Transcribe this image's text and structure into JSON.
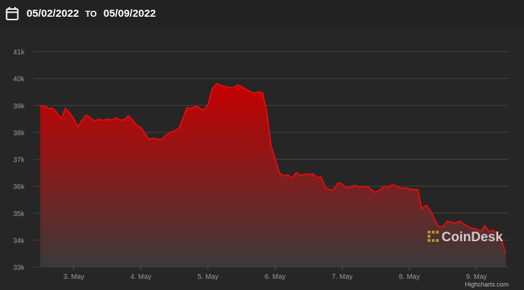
{
  "header": {
    "from": "05/02/2022",
    "to_label": "TO",
    "to": "05/09/2022"
  },
  "chart_data": {
    "type": "area",
    "x": [
      2.5,
      2.5625,
      2.625,
      2.6875,
      2.75,
      2.8125,
      2.875,
      2.9375,
      3,
      3.0625,
      3.125,
      3.1875,
      3.25,
      3.3125,
      3.375,
      3.4375,
      3.5,
      3.5625,
      3.625,
      3.6875,
      3.75,
      3.8125,
      3.875,
      3.9375,
      4,
      4.0625,
      4.125,
      4.1875,
      4.25,
      4.3125,
      4.375,
      4.4375,
      4.5,
      4.5625,
      4.625,
      4.6875,
      4.75,
      4.8125,
      4.875,
      4.9375,
      5,
      5.0625,
      5.125,
      5.1875,
      5.25,
      5.3125,
      5.375,
      5.4375,
      5.5,
      5.5625,
      5.625,
      5.6875,
      5.75,
      5.8125,
      5.875,
      5.9375,
      6,
      6.0625,
      6.125,
      6.1875,
      6.25,
      6.3125,
      6.375,
      6.4375,
      6.5,
      6.5625,
      6.625,
      6.6875,
      6.75,
      6.8125,
      6.875,
      6.9375,
      7,
      7.0625,
      7.125,
      7.1875,
      7.25,
      7.3125,
      7.375,
      7.4375,
      7.5,
      7.5625,
      7.625,
      7.6875,
      7.75,
      7.8125,
      7.875,
      7.9375,
      8,
      8.0625,
      8.125,
      8.1875,
      8.25,
      8.3125,
      8.375,
      8.4375,
      8.5,
      8.5625,
      8.625,
      8.6875,
      8.75,
      8.8125,
      8.875,
      8.9375,
      9,
      9.0625,
      9.125,
      9.1875,
      9.25,
      9.3125,
      9.375,
      9.4375
    ],
    "series": [
      {
        "color": "#e00d0d",
        "values": [
          38980,
          38980,
          38880,
          38900,
          38720,
          38510,
          38900,
          38720,
          38510,
          38200,
          38460,
          38640,
          38540,
          38410,
          38490,
          38440,
          38490,
          38460,
          38540,
          38460,
          38460,
          38620,
          38460,
          38260,
          38180,
          37950,
          37740,
          37790,
          37740,
          37740,
          37900,
          38000,
          38050,
          38130,
          38510,
          38930,
          38880,
          38980,
          38900,
          38820,
          39030,
          39600,
          39810,
          39750,
          39700,
          39670,
          39650,
          39760,
          39710,
          39600,
          39520,
          39450,
          39500,
          39470,
          38770,
          37500,
          37020,
          36500,
          36380,
          36420,
          36300,
          36500,
          36400,
          36440,
          36440,
          36460,
          36320,
          36340,
          35930,
          35870,
          35870,
          36130,
          36080,
          35930,
          35980,
          36030,
          35980,
          35980,
          35980,
          35870,
          35770,
          35870,
          35980,
          35980,
          36050,
          36000,
          35930,
          35930,
          35900,
          35870,
          35870,
          35150,
          35300,
          35100,
          34750,
          34500,
          34500,
          34700,
          34650,
          34630,
          34700,
          34600,
          34500,
          34430,
          34420,
          34300,
          34530,
          34320,
          34370,
          34220,
          34010,
          33490
        ]
      }
    ],
    "xlim": [
      2.4,
      9.48
    ],
    "xticks": [
      {
        "value": 3,
        "label": "3. May"
      },
      {
        "value": 4,
        "label": "4. May"
      },
      {
        "value": 5,
        "label": "5. May"
      },
      {
        "value": 6,
        "label": "6. May"
      },
      {
        "value": 7,
        "label": "7. May"
      },
      {
        "value": 8,
        "label": "8. May"
      },
      {
        "value": 9,
        "label": "9. May"
      }
    ],
    "ylim": [
      33000,
      41000
    ],
    "yticks": [
      {
        "value": 33000,
        "label": "33k"
      },
      {
        "value": 34000,
        "label": "34k"
      },
      {
        "value": 35000,
        "label": "35k"
      },
      {
        "value": 36000,
        "label": "36k"
      },
      {
        "value": 37000,
        "label": "37k"
      },
      {
        "value": 38000,
        "label": "38k"
      },
      {
        "value": 39000,
        "label": "39k"
      },
      {
        "value": 40000,
        "label": "40k"
      },
      {
        "value": 41000,
        "label": "41k"
      }
    ],
    "grid": true,
    "watermark": "CoinDesk",
    "credits": "Highcharts.com"
  }
}
